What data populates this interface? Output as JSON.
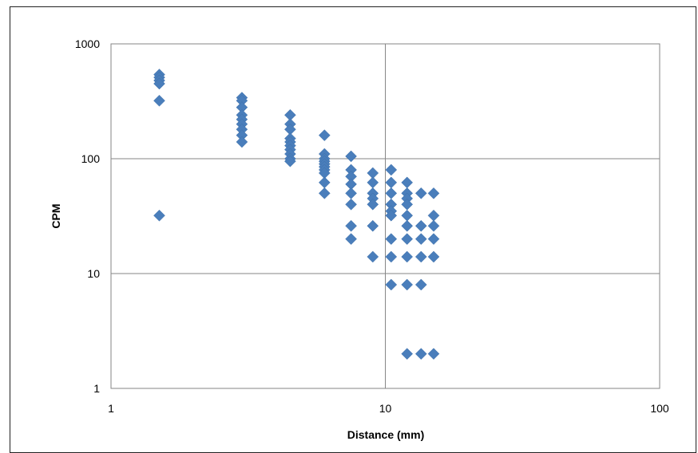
{
  "chart_data": {
    "type": "scatter",
    "title": "",
    "xlabel": "Distance (mm)",
    "ylabel": "CPM",
    "xscale": "log",
    "yscale": "log",
    "xlim": [
      1,
      100
    ],
    "ylim": [
      1,
      1000
    ],
    "grid": true,
    "legend": "none",
    "x_ticks": [
      "1",
      "10",
      "100"
    ],
    "y_ticks": [
      "1",
      "10",
      "100",
      "1000"
    ],
    "marker": "diamond",
    "marker_color": "#4a7ebb",
    "series": [
      {
        "points": [
          [
            1.5,
            540
          ],
          [
            1.5,
            510
          ],
          [
            1.5,
            480
          ],
          [
            1.5,
            450
          ],
          [
            1.5,
            320
          ],
          [
            1.5,
            32
          ],
          [
            3,
            340
          ],
          [
            3,
            320
          ],
          [
            3,
            280
          ],
          [
            3,
            240
          ],
          [
            3,
            220
          ],
          [
            3,
            200
          ],
          [
            3,
            180
          ],
          [
            3,
            160
          ],
          [
            3,
            140
          ],
          [
            4.5,
            240
          ],
          [
            4.5,
            200
          ],
          [
            4.5,
            180
          ],
          [
            4.5,
            150
          ],
          [
            4.5,
            140
          ],
          [
            4.5,
            130
          ],
          [
            4.5,
            120
          ],
          [
            4.5,
            110
          ],
          [
            4.5,
            100
          ],
          [
            4.5,
            95
          ],
          [
            6,
            160
          ],
          [
            6,
            110
          ],
          [
            6,
            100
          ],
          [
            6,
            95
          ],
          [
            6,
            90
          ],
          [
            6,
            85
          ],
          [
            6,
            80
          ],
          [
            6,
            75
          ],
          [
            6,
            62
          ],
          [
            6,
            50
          ],
          [
            7.5,
            105
          ],
          [
            7.5,
            80
          ],
          [
            7.5,
            70
          ],
          [
            7.5,
            60
          ],
          [
            7.5,
            50
          ],
          [
            7.5,
            40
          ],
          [
            7.5,
            26
          ],
          [
            7.5,
            20
          ],
          [
            9,
            75
          ],
          [
            9,
            62
          ],
          [
            9,
            50
          ],
          [
            9,
            45
          ],
          [
            9,
            40
          ],
          [
            9,
            26
          ],
          [
            9,
            14
          ],
          [
            10.5,
            80
          ],
          [
            10.5,
            62
          ],
          [
            10.5,
            50
          ],
          [
            10.5,
            40
          ],
          [
            10.5,
            35
          ],
          [
            10.5,
            32
          ],
          [
            10.5,
            20
          ],
          [
            10.5,
            14
          ],
          [
            10.5,
            8
          ],
          [
            12,
            62
          ],
          [
            12,
            50
          ],
          [
            12,
            45
          ],
          [
            12,
            40
          ],
          [
            12,
            32
          ],
          [
            12,
            26
          ],
          [
            12,
            20
          ],
          [
            12,
            14
          ],
          [
            12,
            8
          ],
          [
            12,
            2
          ],
          [
            13.5,
            50
          ],
          [
            13.5,
            26
          ],
          [
            13.5,
            20
          ],
          [
            13.5,
            14
          ],
          [
            13.5,
            8
          ],
          [
            13.5,
            2
          ],
          [
            15,
            50
          ],
          [
            15,
            32
          ],
          [
            15,
            26
          ],
          [
            15,
            20
          ],
          [
            15,
            14
          ],
          [
            15,
            2
          ]
        ]
      }
    ]
  }
}
